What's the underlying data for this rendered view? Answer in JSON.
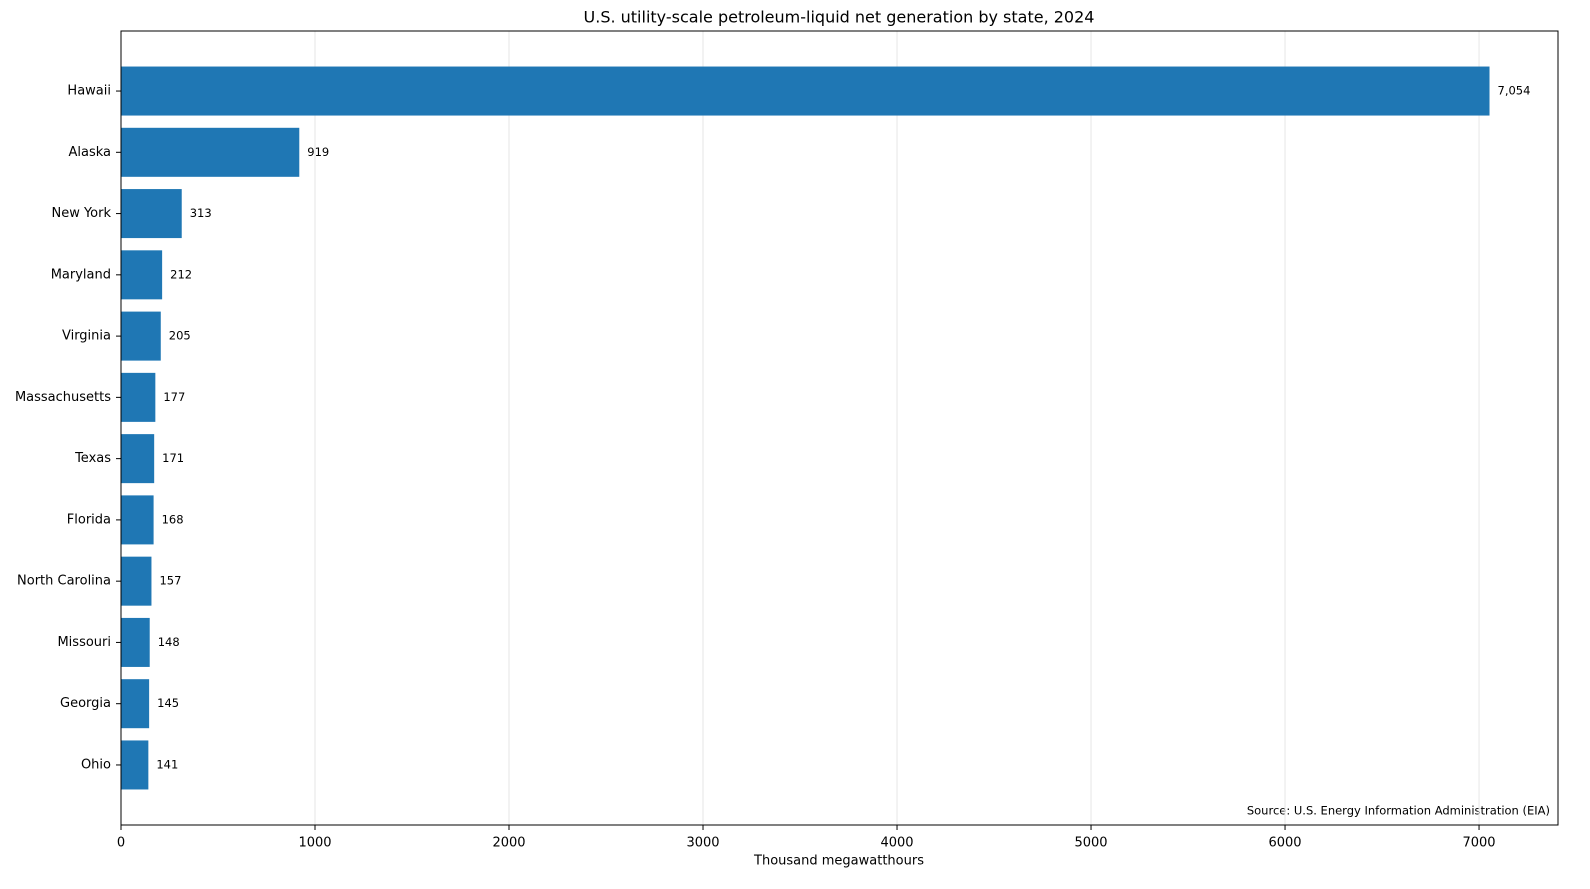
{
  "chart_data": {
    "type": "barh",
    "title": "U.S. utility-scale petroleum-liquid net generation by state, 2024",
    "xlabel": "Thousand megawatthours",
    "annotation": "Source: U.S. Energy Information Administration (EIA)",
    "categories": [
      "Hawaii",
      "Alaska",
      "New York",
      "Maryland",
      "Virginia",
      "Massachusetts",
      "Texas",
      "Florida",
      "North Carolina",
      "Missouri",
      "Georgia",
      "Ohio"
    ],
    "values": [
      7054,
      919,
      313,
      212,
      205,
      177,
      171,
      168,
      157,
      148,
      145,
      141
    ],
    "value_labels": [
      "7,054",
      "919",
      "313",
      "212",
      "205",
      "177",
      "171",
      "168",
      "157",
      "148",
      "145",
      "141"
    ],
    "color": "#1f77b4",
    "xlim": [
      0,
      7407
    ],
    "xticks": [
      0,
      1000,
      2000,
      3000,
      4000,
      5000,
      6000,
      7000
    ],
    "grid": true
  }
}
